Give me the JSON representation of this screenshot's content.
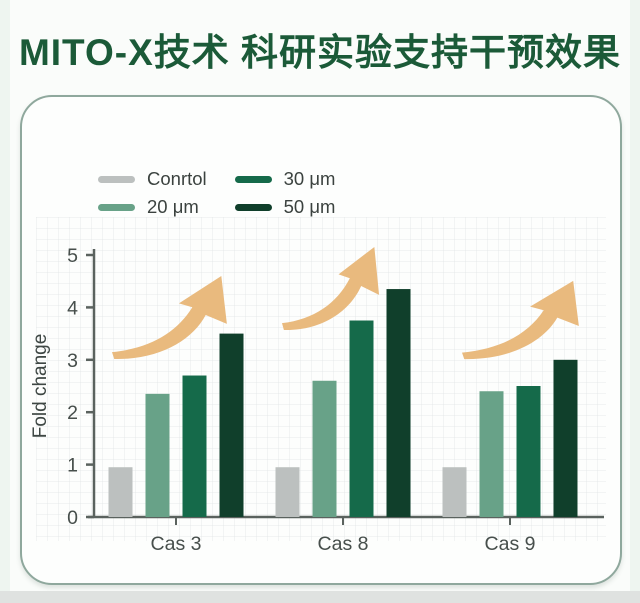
{
  "page": {
    "title": "MITO-X技术 科研实验支持干预效果"
  },
  "colors": {
    "title_green": "#1b5a38",
    "card_border": "#8fa89d",
    "axis": "#5a625e",
    "tick_text": "#474f4c",
    "arrow": "#e9ba7e"
  },
  "chart_data": {
    "type": "bar",
    "title": "",
    "categories": [
      "Cas 3",
      "Cas 8",
      "Cas 9"
    ],
    "series": [
      {
        "name": "Conrtol",
        "color": "#bcc0bf",
        "values": [
          0.95,
          0.95,
          0.95
        ]
      },
      {
        "name": "20 μm",
        "color": "#68a288",
        "values": [
          2.35,
          2.6,
          2.4
        ]
      },
      {
        "name": "30 μm",
        "color": "#156a4a",
        "values": [
          2.7,
          3.75,
          2.5
        ]
      },
      {
        "name": "50 μm",
        "color": "#103f2b",
        "values": [
          3.5,
          4.35,
          3.0
        ]
      }
    ],
    "xlabel": "",
    "ylabel": "Fold change",
    "ylim": [
      0,
      5
    ],
    "yticks": [
      0,
      1,
      2,
      3,
      4,
      5
    ],
    "grid": "faint square grid texture",
    "legend_position": "top-left, two columns",
    "annotations": [
      "orange upward swoosh arrow above each category group"
    ]
  }
}
